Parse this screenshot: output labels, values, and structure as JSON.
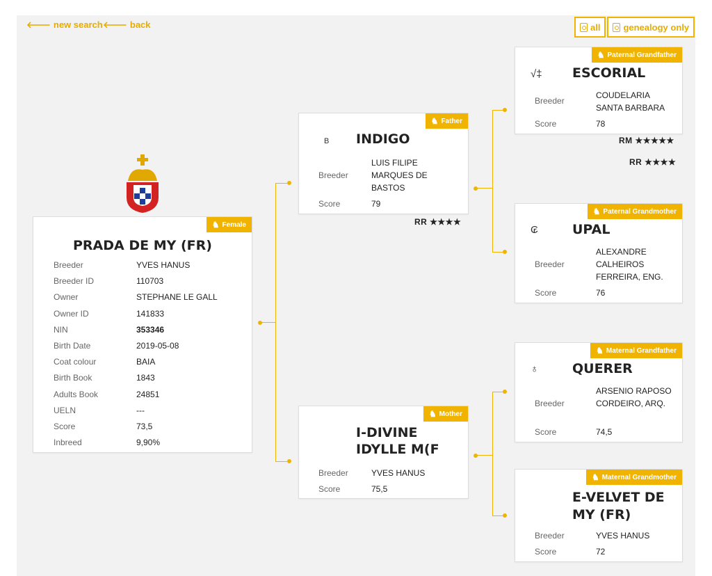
{
  "nav": {
    "new_search": "new search",
    "back": "back"
  },
  "pdf": {
    "all": "all",
    "genealogy": "genealogy only"
  },
  "subject": {
    "tag": "Female",
    "name": "PRADA DE MY (FR)",
    "rows": [
      {
        "label": "Breeder",
        "value": "YVES HANUS"
      },
      {
        "label": "Breeder ID",
        "value": "110703"
      },
      {
        "label": "Owner",
        "value": "STEPHANE LE GALL"
      },
      {
        "label": "Owner ID",
        "value": "141833"
      },
      {
        "label": "NIN",
        "value": "353346"
      },
      {
        "label": "Birth Date",
        "value": "2019-05-08"
      },
      {
        "label": "Coat colour",
        "value": "BAIA"
      },
      {
        "label": "Birth Book",
        "value": "1843"
      },
      {
        "label": "Adults Book",
        "value": "24851"
      },
      {
        "label": "UELN",
        "value": "---"
      },
      {
        "label": "Score",
        "value": "73,5"
      },
      {
        "label": "Inbreed",
        "value": "9,90%"
      }
    ]
  },
  "father": {
    "tag": "Father",
    "symbol": "B",
    "name": "INDIGO",
    "breeder_label": "Breeder",
    "breeder": "LUIS FILIPE MARQUES DE BASTOS",
    "score_label": "Score",
    "score": "79",
    "rating": "RR ★★★★"
  },
  "mother": {
    "tag": "Mother",
    "name": "I-DIVINE IDYLLE M(F",
    "breeder_label": "Breeder",
    "breeder": "YVES HANUS",
    "score_label": "Score",
    "score": "75,5"
  },
  "pgf": {
    "tag": "Paternal Grandfather",
    "symbol": "√‡",
    "name": "ESCORIAL",
    "breeder_label": "Breeder",
    "breeder": "COUDELARIA SANTA BARBARA",
    "score_label": "Score",
    "score": "78",
    "rating1": "RM ★★★★★",
    "rating2": "RR ★★★★"
  },
  "pgm": {
    "tag": "Paternal Grandmother",
    "symbol": "₢",
    "name": "UPAL",
    "breeder_label": "Breeder",
    "breeder": "ALEXANDRE CALHEIROS FERREIRA, ENG.",
    "score_label": "Score",
    "score": "76"
  },
  "mgf": {
    "tag": "Maternal Grandfather",
    "symbol": "♁",
    "name": "QUERER",
    "breeder_label": "Breeder",
    "breeder": "ARSENIO RAPOSO CORDEIRO, ARQ.",
    "score_label": "Score",
    "score": "74,5"
  },
  "mgm": {
    "tag": "Maternal Grandmother",
    "name": "E-VELVET DE MY (FR)",
    "breeder_label": "Breeder",
    "breeder": "YVES HANUS",
    "score_label": "Score",
    "score": "72"
  },
  "colors": {
    "accent": "#f0b400"
  }
}
